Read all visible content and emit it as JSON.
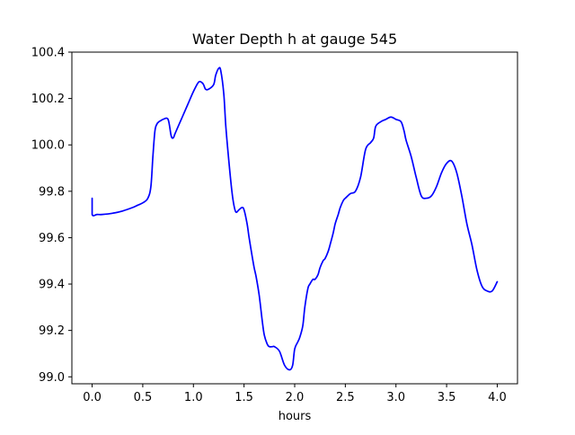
{
  "chart_data": {
    "type": "line",
    "title": "Water Depth h at gauge 545",
    "xlabel": "hours",
    "ylabel": "",
    "xlim": [
      -0.2,
      4.2
    ],
    "ylim": [
      98.97,
      100.4
    ],
    "xticks": [
      0.0,
      0.5,
      1.0,
      1.5,
      2.0,
      2.5,
      3.0,
      3.5,
      4.0
    ],
    "xtick_labels": [
      "0.0",
      "0.5",
      "1.0",
      "1.5",
      "2.0",
      "2.5",
      "3.0",
      "3.5",
      "4.0"
    ],
    "yticks": [
      99.0,
      99.2,
      99.4,
      99.6,
      99.8,
      100.0,
      100.2,
      100.4
    ],
    "ytick_labels": [
      "99.0",
      "99.2",
      "99.4",
      "99.6",
      "99.8",
      "100.0",
      "100.2",
      "100.4"
    ],
    "grid": false,
    "legend": "none",
    "series": [
      {
        "color": "#0000ff",
        "x": [
          0.0,
          0.0,
          0.05,
          0.1,
          0.2,
          0.3,
          0.4,
          0.45,
          0.5,
          0.55,
          0.58,
          0.6,
          0.62,
          0.64,
          0.66,
          0.68,
          0.7,
          0.75,
          0.78,
          0.8,
          0.82,
          0.85,
          0.9,
          0.95,
          1.0,
          1.05,
          1.08,
          1.1,
          1.12,
          1.15,
          1.2,
          1.22,
          1.25,
          1.27,
          1.3,
          1.32,
          1.35,
          1.38,
          1.4,
          1.42,
          1.45,
          1.48,
          1.5,
          1.53,
          1.55,
          1.58,
          1.6,
          1.62,
          1.65,
          1.68,
          1.7,
          1.73,
          1.75,
          1.78,
          1.8,
          1.85,
          1.9,
          1.95,
          1.98,
          2.0,
          2.03,
          2.05,
          2.08,
          2.1,
          2.13,
          2.15,
          2.18,
          2.2,
          2.23,
          2.25,
          2.28,
          2.3,
          2.33,
          2.35,
          2.38,
          2.4,
          2.43,
          2.45,
          2.48,
          2.5,
          2.55,
          2.6,
          2.65,
          2.7,
          2.75,
          2.78,
          2.8,
          2.85,
          2.9,
          2.95,
          3.0,
          3.05,
          3.08,
          3.1,
          3.15,
          3.2,
          3.25,
          3.3,
          3.35,
          3.4,
          3.45,
          3.5,
          3.55,
          3.6,
          3.65,
          3.7,
          3.75,
          3.8,
          3.85,
          3.9,
          3.95,
          4.0
        ],
        "y": [
          99.77,
          99.7,
          99.7,
          99.7,
          99.705,
          99.715,
          99.73,
          99.74,
          99.75,
          99.77,
          99.82,
          99.95,
          100.06,
          100.09,
          100.1,
          100.105,
          100.11,
          100.11,
          100.04,
          100.03,
          100.05,
          100.08,
          100.13,
          100.18,
          100.23,
          100.27,
          100.27,
          100.26,
          100.24,
          100.24,
          100.26,
          100.3,
          100.33,
          100.32,
          100.22,
          100.08,
          99.93,
          99.8,
          99.74,
          99.71,
          99.72,
          99.73,
          99.72,
          99.66,
          99.6,
          99.52,
          99.47,
          99.43,
          99.35,
          99.24,
          99.18,
          99.14,
          99.13,
          99.13,
          99.13,
          99.11,
          99.05,
          99.03,
          99.05,
          99.12,
          99.15,
          99.17,
          99.22,
          99.3,
          99.38,
          99.4,
          99.42,
          99.42,
          99.44,
          99.47,
          99.5,
          99.51,
          99.54,
          99.57,
          99.62,
          99.66,
          99.7,
          99.73,
          99.76,
          99.77,
          99.79,
          99.8,
          99.86,
          99.98,
          100.01,
          100.03,
          100.08,
          100.1,
          100.11,
          100.12,
          100.11,
          100.1,
          100.06,
          100.02,
          99.95,
          99.86,
          99.78,
          99.77,
          99.78,
          99.82,
          99.88,
          99.92,
          99.93,
          99.88,
          99.78,
          99.66,
          99.57,
          99.46,
          99.39,
          99.37,
          99.37,
          99.41
        ]
      }
    ]
  }
}
